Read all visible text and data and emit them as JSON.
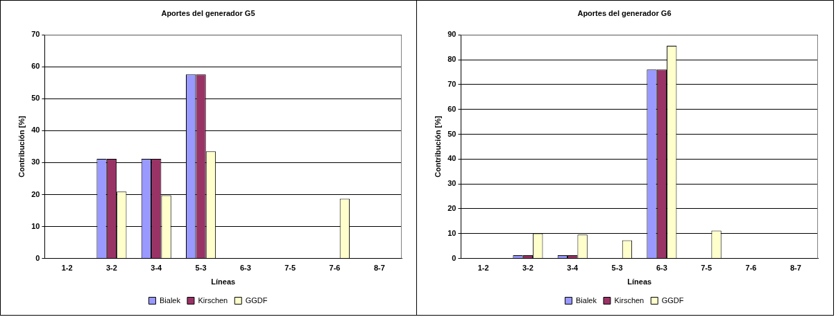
{
  "chart_data": [
    {
      "type": "bar",
      "title": "Aportes del generador G5",
      "xlabel": "Líneas",
      "ylabel": "Contribución [%]",
      "categories": [
        "1-2",
        "3-2",
        "3-4",
        "5-3",
        "6-3",
        "7-5",
        "7-6",
        "8-7"
      ],
      "series": [
        {
          "name": "Bialek",
          "color": "#9999ff",
          "values": [
            0,
            31.2,
            31.2,
            57.6,
            0,
            0,
            0,
            0
          ]
        },
        {
          "name": "Kirschen",
          "color": "#993366",
          "values": [
            0,
            31.2,
            31.2,
            57.6,
            0,
            0,
            0,
            0
          ]
        },
        {
          "name": "GGDF",
          "color": "#ffffcc",
          "values": [
            0,
            20.9,
            19.8,
            33.5,
            0,
            0,
            18.7,
            0
          ]
        }
      ],
      "ylim": [
        0,
        70
      ],
      "yticks": [
        0,
        10,
        20,
        30,
        40,
        50,
        60,
        70
      ],
      "grid": "y",
      "legend": "bottom"
    },
    {
      "type": "bar",
      "title": "Aportes del generador G6",
      "xlabel": "Líneas",
      "ylabel": "Contribución [%]",
      "categories": [
        "1-2",
        "3-2",
        "3-4",
        "5-3",
        "6-3",
        "7-5",
        "7-6",
        "8-7"
      ],
      "series": [
        {
          "name": "Bialek",
          "color": "#9999ff",
          "values": [
            0,
            1.3,
            1.3,
            0,
            76,
            0,
            0,
            0
          ]
        },
        {
          "name": "Kirschen",
          "color": "#993366",
          "values": [
            0,
            1.3,
            1.3,
            0,
            76,
            0,
            0,
            0
          ]
        },
        {
          "name": "GGDF",
          "color": "#ffffcc",
          "values": [
            0,
            10.1,
            9.6,
            7.3,
            85.6,
            11.2,
            0,
            0
          ]
        }
      ],
      "ylim": [
        0,
        90
      ],
      "yticks": [
        0,
        10,
        20,
        30,
        40,
        50,
        60,
        70,
        80,
        90
      ],
      "grid": "y",
      "legend": "bottom"
    }
  ]
}
